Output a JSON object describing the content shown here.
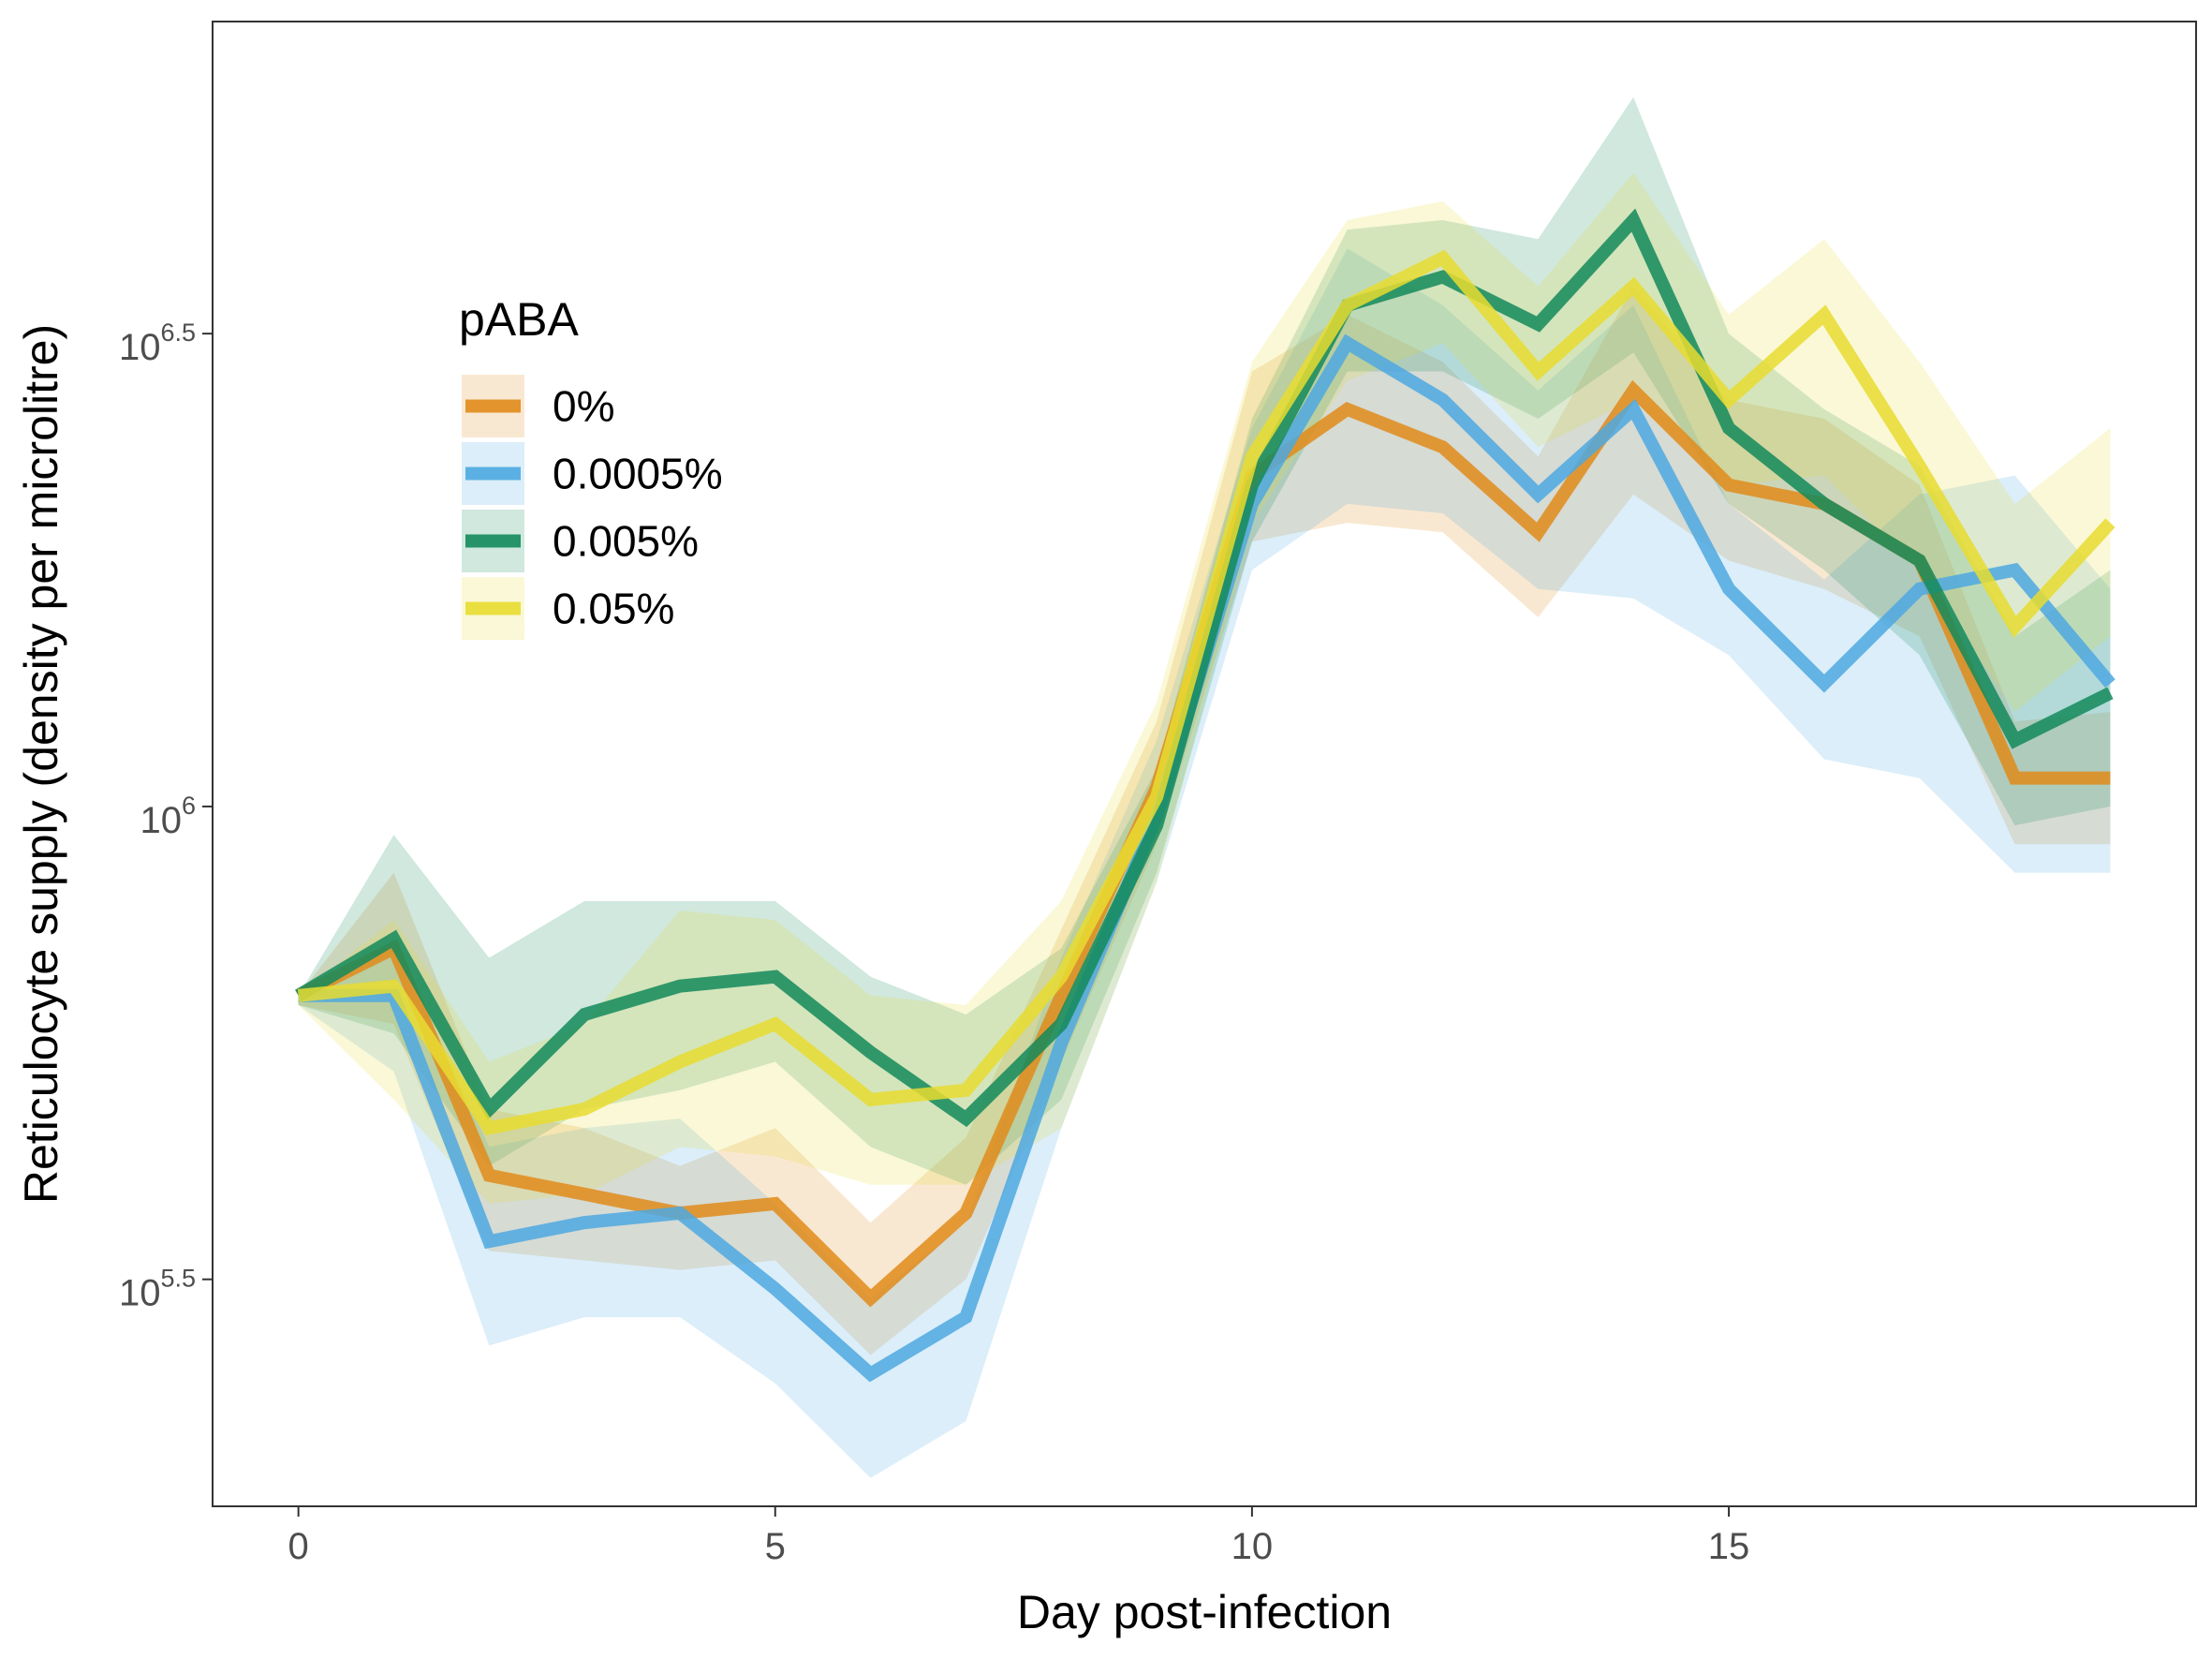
{
  "chart_data": {
    "type": "line",
    "xlabel": "Day post-infection",
    "ylabel": "Reticulocyte supply (density per microlitre)",
    "x_ticks": [
      0,
      5,
      10,
      15
    ],
    "y_ticks": [
      {
        "value": 5.5,
        "base": "10",
        "exp": "5.5"
      },
      {
        "value": 6.0,
        "base": "10",
        "exp": "6"
      },
      {
        "value": 6.5,
        "base": "10",
        "exp": "6.5"
      }
    ],
    "y_scale": "log10",
    "xlim": [
      -0.9,
      19.9
    ],
    "ylim": [
      5.26,
      6.83
    ],
    "grid": false,
    "legend": {
      "title": "pABA",
      "placement": "upper-left inside plot"
    },
    "x": [
      0,
      1,
      2,
      3,
      4,
      5,
      6,
      7,
      8,
      9,
      10,
      11,
      12,
      13,
      14,
      15,
      16,
      17,
      18,
      19
    ],
    "series": [
      {
        "name": "0%",
        "color": "#E08B1A",
        "y": [
          5.8,
          5.85,
          5.61,
          5.59,
          5.57,
          5.58,
          5.48,
          5.57,
          5.8,
          6.02,
          6.35,
          6.42,
          6.38,
          6.29,
          6.44,
          6.34,
          6.32,
          6.26,
          6.03,
          6.03
        ],
        "lower": [
          5.79,
          5.77,
          5.53,
          5.52,
          5.51,
          5.52,
          5.42,
          5.5,
          5.73,
          5.96,
          6.28,
          6.3,
          6.29,
          6.2,
          6.33,
          6.26,
          6.23,
          6.18,
          5.96,
          5.96
        ],
        "upper": [
          5.8,
          5.93,
          5.68,
          5.66,
          5.62,
          5.66,
          5.56,
          5.65,
          5.87,
          6.09,
          6.46,
          6.52,
          6.47,
          6.37,
          6.55,
          6.43,
          6.41,
          6.34,
          6.09,
          6.1
        ]
      },
      {
        "name": "0.0005%",
        "color": "#4DA8E0",
        "y": [
          5.8,
          5.8,
          5.54,
          5.56,
          5.57,
          5.49,
          5.4,
          5.46,
          5.75,
          5.99,
          6.32,
          6.49,
          6.43,
          6.33,
          6.42,
          6.23,
          6.13,
          6.23,
          6.25,
          6.13
        ],
        "lower": [
          5.79,
          5.72,
          5.43,
          5.46,
          5.46,
          5.39,
          5.29,
          5.35,
          5.66,
          5.92,
          6.25,
          6.32,
          6.31,
          6.23,
          6.22,
          6.16,
          6.05,
          6.03,
          5.93,
          5.93
        ],
        "upper": [
          5.8,
          5.86,
          5.64,
          5.66,
          5.67,
          5.58,
          5.48,
          5.56,
          5.84,
          6.07,
          6.4,
          6.59,
          6.53,
          6.44,
          6.53,
          6.32,
          6.24,
          6.33,
          6.35,
          6.23
        ]
      },
      {
        "name": "0.005%",
        "color": "#138A5B",
        "y": [
          5.8,
          5.86,
          5.68,
          5.78,
          5.81,
          5.82,
          5.74,
          5.67,
          5.77,
          5.98,
          6.34,
          6.53,
          6.56,
          6.51,
          6.62,
          6.4,
          6.32,
          6.26,
          6.07,
          6.12
        ],
        "lower": [
          5.79,
          5.76,
          5.62,
          5.68,
          5.7,
          5.73,
          5.64,
          5.6,
          5.69,
          5.93,
          6.28,
          6.46,
          6.46,
          6.41,
          6.48,
          6.32,
          6.25,
          6.16,
          5.98,
          6.0
        ],
        "upper": [
          5.8,
          5.97,
          5.84,
          5.9,
          5.9,
          5.9,
          5.82,
          5.78,
          5.85,
          6.04,
          6.41,
          6.61,
          6.62,
          6.6,
          6.75,
          6.5,
          6.42,
          6.36,
          6.18,
          6.25
        ]
      },
      {
        "name": "0.05%",
        "color": "#E8DC30",
        "y": [
          5.8,
          5.81,
          5.66,
          5.68,
          5.73,
          5.77,
          5.69,
          5.7,
          5.82,
          6.01,
          6.37,
          6.53,
          6.58,
          6.46,
          6.55,
          6.43,
          6.52,
          6.36,
          6.19,
          6.3
        ],
        "lower": [
          5.79,
          5.69,
          5.58,
          5.59,
          5.64,
          5.63,
          5.6,
          5.6,
          5.66,
          5.92,
          6.3,
          6.45,
          6.49,
          6.38,
          6.43,
          6.34,
          6.35,
          6.25,
          6.1,
          6.18
        ],
        "upper": [
          5.8,
          5.88,
          5.73,
          5.77,
          5.89,
          5.88,
          5.8,
          5.79,
          5.9,
          6.11,
          6.47,
          6.62,
          6.64,
          6.55,
          6.67,
          6.52,
          6.6,
          6.47,
          6.32,
          6.4
        ]
      }
    ]
  }
}
